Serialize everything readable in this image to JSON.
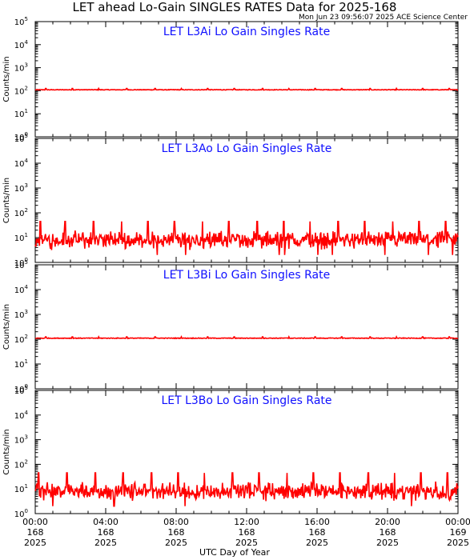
{
  "header": {
    "title": "LET ahead Lo-Gain SINGLES RATES Data for 2025-168",
    "subtitle": "Mon Jun 23 09:56:07 2025 ACE Science Center"
  },
  "colors": {
    "series": "#ff0000",
    "panel_title": "#1010ff",
    "axes": "#000000"
  },
  "chart_data": [
    {
      "type": "line",
      "title": "LET L3Ai Lo Gain Singles Rate",
      "ylabel": "Counts/min",
      "yscale": "log",
      "ylim": [
        1,
        100000
      ],
      "ytick_exponents": [
        0,
        1,
        2,
        3,
        4,
        5
      ],
      "xlim": [
        0,
        24
      ],
      "series": [
        {
          "baseline": 110,
          "spread": 1.05,
          "spike_value": 125,
          "spike_times_hr": [
            0.6,
            2.1,
            3.6,
            5.2,
            6.8,
            8.3,
            9.8,
            11.3,
            12.9,
            14.4,
            15.9,
            17.4,
            19.0,
            20.5,
            22.0,
            23.5
          ]
        }
      ]
    },
    {
      "type": "line",
      "title": "LET L3Ao Lo Gain Singles Rate",
      "ylabel": "Counts/min",
      "yscale": "log",
      "ylim": [
        1,
        100000
      ],
      "ytick_exponents": [
        0,
        1,
        2,
        3,
        4,
        5
      ],
      "xlim": [
        0,
        24
      ],
      "series": [
        {
          "baseline": 8,
          "spread": 1.8,
          "spike_value": 45,
          "spike_times_hr": [
            0.3,
            1.7,
            3.3,
            4.9,
            6.4,
            7.9,
            9.5,
            11.0,
            12.6,
            14.1,
            15.6,
            17.2,
            18.7,
            20.3,
            21.8,
            23.3
          ]
        }
      ]
    },
    {
      "type": "line",
      "title": "LET L3Bi Lo Gain Singles Rate",
      "ylabel": "Counts/min",
      "yscale": "log",
      "ylim": [
        1,
        100000
      ],
      "ytick_exponents": [
        0,
        1,
        2,
        3,
        4,
        5
      ],
      "xlim": [
        0,
        24
      ],
      "series": [
        {
          "baseline": 110,
          "spread": 1.05,
          "spike_value": 125,
          "spike_times_hr": [
            0.6,
            2.1,
            3.6,
            5.2,
            6.8,
            8.3,
            9.8,
            11.3,
            12.9,
            14.4,
            15.9,
            17.4,
            19.0,
            20.5,
            22.0,
            23.5
          ]
        }
      ]
    },
    {
      "type": "line",
      "title": "LET L3Bo Lo Gain Singles Rate",
      "ylabel": "Counts/min",
      "yscale": "log",
      "ylim": [
        1,
        100000
      ],
      "ytick_exponents": [
        0,
        1,
        2,
        3,
        4,
        5
      ],
      "xlim": [
        0,
        24
      ],
      "series": [
        {
          "baseline": 8,
          "spread": 1.8,
          "spike_value": 45,
          "spike_times_hr": [
            0.2,
            1.8,
            3.4,
            5.0,
            6.6,
            8.1,
            9.6,
            11.2,
            12.7,
            14.3,
            15.8,
            17.3,
            18.9,
            20.4,
            21.9,
            23.4
          ]
        }
      ]
    }
  ],
  "x_axis": {
    "label": "UTC Day of Year",
    "ticks": [
      {
        "hour": 0,
        "time": "00:00",
        "doy": "168",
        "year": "2025"
      },
      {
        "hour": 4,
        "time": "04:00",
        "doy": "168",
        "year": "2025"
      },
      {
        "hour": 8,
        "time": "08:00",
        "doy": "168",
        "year": "2025"
      },
      {
        "hour": 12,
        "time": "12:00",
        "doy": "168",
        "year": "2025"
      },
      {
        "hour": 16,
        "time": "16:00",
        "doy": "168",
        "year": "2025"
      },
      {
        "hour": 20,
        "time": "20:00",
        "doy": "168",
        "year": "2025"
      },
      {
        "hour": 24,
        "time": "00:00",
        "doy": "169",
        "year": "2025"
      }
    ]
  }
}
